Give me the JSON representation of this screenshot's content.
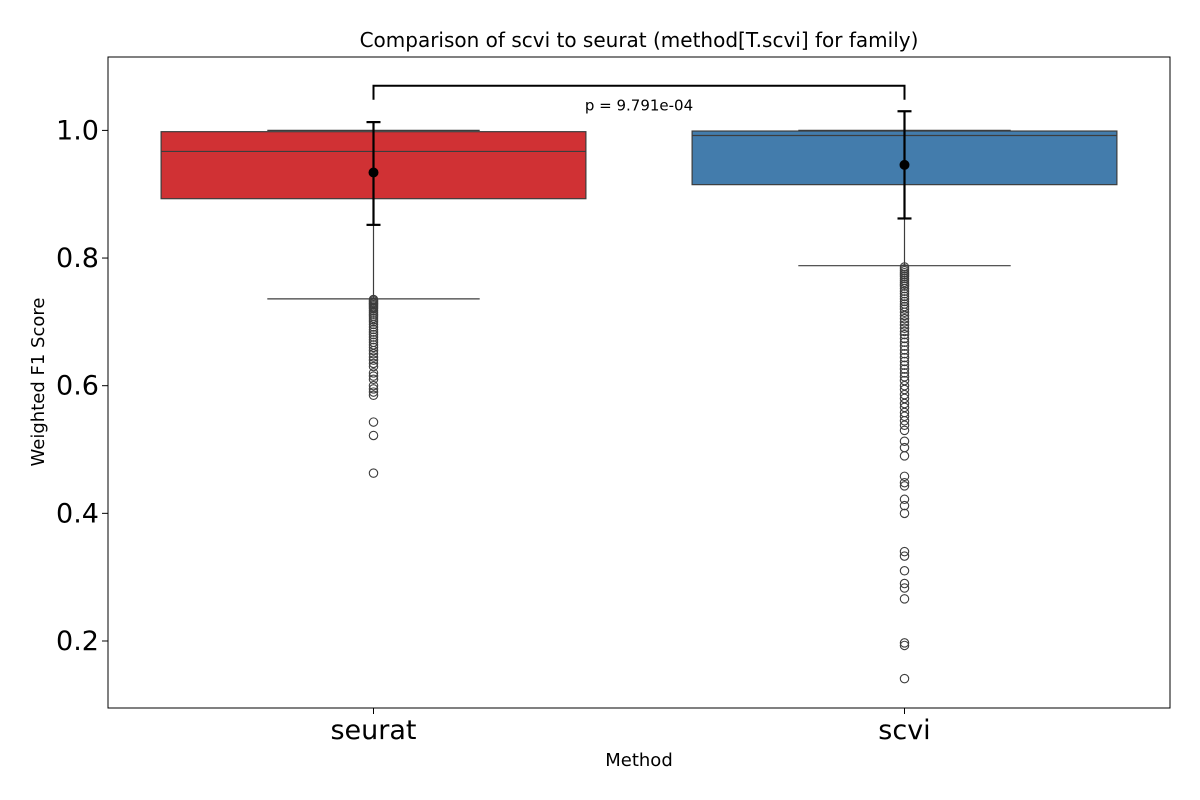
{
  "chart_data": {
    "type": "box",
    "title": "Comparison of scvi to seurat (method[T.scvi] for family)",
    "xlabel": "Method",
    "ylabel": "Weighted F1 Score",
    "ylim": [
      0.095,
      1.115
    ],
    "yticks": [
      0.2,
      0.4,
      0.6,
      0.8,
      1.0
    ],
    "ytick_labels": [
      "0.2",
      "0.4",
      "0.6",
      "0.8",
      "1.0"
    ],
    "categories": [
      "seurat",
      "scvi"
    ],
    "boxes": [
      {
        "name": "seurat",
        "color": "#d03134",
        "q1": 0.893,
        "median": 0.967,
        "q3": 0.998,
        "whisker_low": 0.736,
        "whisker_high": 1.0,
        "mean": 0.934,
        "err_low": 0.852,
        "err_high": 1.013,
        "outliers": [
          0.735,
          0.733,
          0.731,
          0.729,
          0.727,
          0.725,
          0.723,
          0.721,
          0.718,
          0.715,
          0.712,
          0.709,
          0.706,
          0.703,
          0.7,
          0.696,
          0.692,
          0.688,
          0.684,
          0.68,
          0.676,
          0.672,
          0.668,
          0.664,
          0.66,
          0.655,
          0.65,
          0.645,
          0.64,
          0.635,
          0.63,
          0.62,
          0.615,
          0.61,
          0.6,
          0.595,
          0.59,
          0.585,
          0.543,
          0.522,
          0.463
        ]
      },
      {
        "name": "scvi",
        "color": "#437cac",
        "q1": 0.915,
        "median": 0.992,
        "q3": 0.999,
        "whisker_low": 0.788,
        "whisker_high": 1.0,
        "mean": 0.946,
        "err_low": 0.862,
        "err_high": 1.03,
        "outliers": [
          0.786,
          0.783,
          0.78,
          0.777,
          0.774,
          0.771,
          0.768,
          0.765,
          0.762,
          0.759,
          0.756,
          0.752,
          0.748,
          0.744,
          0.74,
          0.736,
          0.732,
          0.728,
          0.724,
          0.72,
          0.715,
          0.71,
          0.705,
          0.7,
          0.695,
          0.69,
          0.685,
          0.68,
          0.674,
          0.668,
          0.662,
          0.656,
          0.65,
          0.644,
          0.638,
          0.632,
          0.626,
          0.62,
          0.614,
          0.608,
          0.6,
          0.594,
          0.586,
          0.58,
          0.572,
          0.566,
          0.558,
          0.552,
          0.545,
          0.538,
          0.53,
          0.513,
          0.503,
          0.49,
          0.458,
          0.448,
          0.443,
          0.422,
          0.412,
          0.4,
          0.34,
          0.333,
          0.31,
          0.29,
          0.283,
          0.266,
          0.197,
          0.193,
          0.141
        ]
      }
    ],
    "annotation": {
      "text": "p = 9.791e-04",
      "y": 1.07
    }
  }
}
